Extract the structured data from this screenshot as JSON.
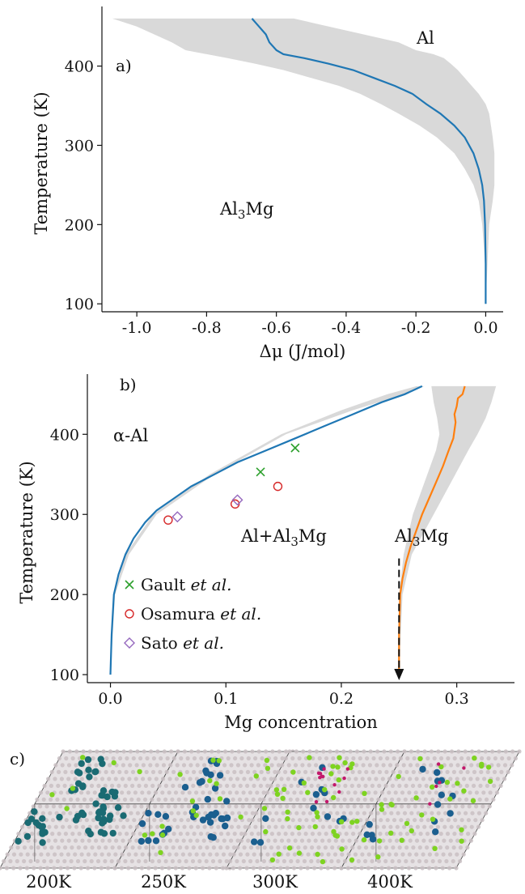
{
  "chart_data": [
    {
      "panel": "a)",
      "type": "line",
      "xlabel": "Δμ (J/mol)",
      "ylabel": "Temperature (K)",
      "xlim": [
        -1.1,
        0.05
      ],
      "ylim": [
        90,
        465
      ],
      "xticks": [
        -1.0,
        -0.8,
        -0.6,
        -0.4,
        -0.2,
        0.0
      ],
      "xtick_labels": [
        "-1.0",
        "-0.8",
        "-0.6",
        "-0.4",
        "-0.2",
        "0.0"
      ],
      "yticks": [
        100,
        200,
        300,
        400
      ],
      "ytick_labels": [
        "100",
        "200",
        "300",
        "400"
      ],
      "annotations": [
        "Al",
        "Al3Mg"
      ],
      "series": [
        {
          "color": "#1f77b4",
          "x": [
            0.0,
            0.0,
            -0.002,
            -0.005,
            -0.01,
            -0.02,
            -0.035,
            -0.06,
            -0.09,
            -0.13,
            -0.17,
            -0.21,
            -0.26,
            -0.32,
            -0.38,
            -0.45,
            -0.52,
            -0.58,
            -0.6,
            -0.62,
            -0.63,
            -0.64,
            -0.65,
            -0.66,
            -0.67
          ],
          "y": [
            100,
            150,
            200,
            230,
            250,
            270,
            290,
            310,
            325,
            340,
            352,
            365,
            375,
            385,
            395,
            403,
            410,
            415,
            420,
            430,
            440,
            445,
            450,
            455,
            460
          ]
        }
      ],
      "band": {
        "color": "#d9d9d9",
        "y": [
          100,
          150,
          200,
          230,
          250,
          270,
          290,
          310,
          325,
          340,
          352,
          365,
          375,
          385,
          395,
          403,
          410,
          415,
          420,
          430,
          440,
          450,
          460
        ],
        "lower": [
          0.0,
          -0.002,
          -0.01,
          -0.02,
          -0.035,
          -0.06,
          -0.09,
          -0.14,
          -0.19,
          -0.25,
          -0.3,
          -0.36,
          -0.42,
          -0.5,
          -0.58,
          -0.66,
          -0.74,
          -0.8,
          -0.86,
          -0.9,
          -0.95,
          -1.0,
          -1.07
        ],
        "upper": [
          0.0,
          0.005,
          0.01,
          0.02,
          0.025,
          0.025,
          0.025,
          0.02,
          0.015,
          0.01,
          0.0,
          -0.02,
          -0.04,
          -0.06,
          -0.08,
          -0.1,
          -0.12,
          -0.15,
          -0.2,
          -0.25,
          -0.35,
          -0.45,
          -0.55
        ]
      }
    },
    {
      "panel": "b)",
      "type": "line",
      "xlabel": "Mg concentration",
      "ylabel": "Temperature (K)",
      "xlim": [
        -0.02,
        0.35
      ],
      "ylim": [
        90,
        465
      ],
      "xticks": [
        0.0,
        0.1,
        0.2,
        0.3
      ],
      "xtick_labels": [
        "0.0",
        "0.1",
        "0.2",
        "0.3"
      ],
      "yticks": [
        100,
        200,
        300,
        400
      ],
      "ytick_labels": [
        "100",
        "200",
        "300",
        "400"
      ],
      "annotations": [
        "α-Al",
        "Al+Al3Mg",
        "Al3Mg"
      ],
      "series": [
        {
          "color": "#1f77b4",
          "x": [
            0.0,
            0.001,
            0.003,
            0.007,
            0.013,
            0.02,
            0.03,
            0.04,
            0.055,
            0.07,
            0.09,
            0.11,
            0.135,
            0.16,
            0.185,
            0.21,
            0.235,
            0.255,
            0.27
          ],
          "y": [
            100,
            150,
            200,
            225,
            250,
            270,
            290,
            305,
            320,
            335,
            350,
            365,
            380,
            395,
            410,
            425,
            440,
            450,
            460
          ]
        },
        {
          "color": "#ff7f0e",
          "x": [
            0.25,
            0.25,
            0.251,
            0.253,
            0.256,
            0.26,
            0.265,
            0.27,
            0.276,
            0.282,
            0.288,
            0.293,
            0.297,
            0.298,
            0.299,
            0.298,
            0.3,
            0.301,
            0.305,
            0.306,
            0.307
          ],
          "y": [
            100,
            150,
            200,
            220,
            240,
            260,
            280,
            300,
            320,
            340,
            360,
            380,
            395,
            405,
            415,
            425,
            435,
            445,
            450,
            455,
            460
          ]
        }
      ],
      "bands": [
        {
          "color": "#d9d9d9",
          "y": [
            100,
            200,
            250,
            300,
            350,
            400,
            430,
            450,
            460
          ],
          "lower": [
            0.0,
            0.003,
            0.013,
            0.037,
            0.086,
            0.148,
            0.2,
            0.24,
            0.265
          ],
          "upper": [
            0.0,
            0.004,
            0.016,
            0.04,
            0.09,
            0.152,
            0.21,
            0.255,
            0.272
          ]
        },
        {
          "color": "#d9d9d9",
          "y": [
            100,
            200,
            250,
            300,
            340,
            380,
            400,
            420,
            440,
            460
          ],
          "lower": [
            0.25,
            0.25,
            0.254,
            0.262,
            0.272,
            0.282,
            0.285,
            0.283,
            0.28,
            0.278
          ],
          "upper": [
            0.25,
            0.253,
            0.261,
            0.28,
            0.295,
            0.31,
            0.318,
            0.325,
            0.33,
            0.334
          ]
        }
      ],
      "scatter": [
        {
          "name": "Gault et al.",
          "marker": "x",
          "color": "#2ca02c",
          "x": [
            0.13,
            0.16
          ],
          "y": [
            353,
            383
          ]
        },
        {
          "name": "Osamura et al.",
          "marker": "o",
          "color": "#d62728",
          "x": [
            0.05,
            0.108,
            0.145
          ],
          "y": [
            293,
            313,
            335
          ]
        },
        {
          "name": "Sato et al.",
          "marker": "D",
          "color": "#9467bd",
          "x": [
            0.058,
            0.11
          ],
          "y": [
            297,
            318
          ]
        }
      ],
      "arrow": {
        "x": 0.25,
        "y_from": 245,
        "y_to": 95
      }
    }
  ],
  "panel_c": {
    "panel_label": "c)",
    "snapshots": [
      {
        "label": "200K"
      },
      {
        "label": "250K"
      },
      {
        "label": "300K"
      },
      {
        "label": "400K"
      }
    ],
    "colors": {
      "lattice": "#c9bfc3",
      "cluster_teal": "#1a6b73",
      "cluster_blue": "#1b5f8f",
      "solute_green": "#7ed321",
      "solute_magenta": "#c2186b",
      "frame": "#444444"
    }
  }
}
